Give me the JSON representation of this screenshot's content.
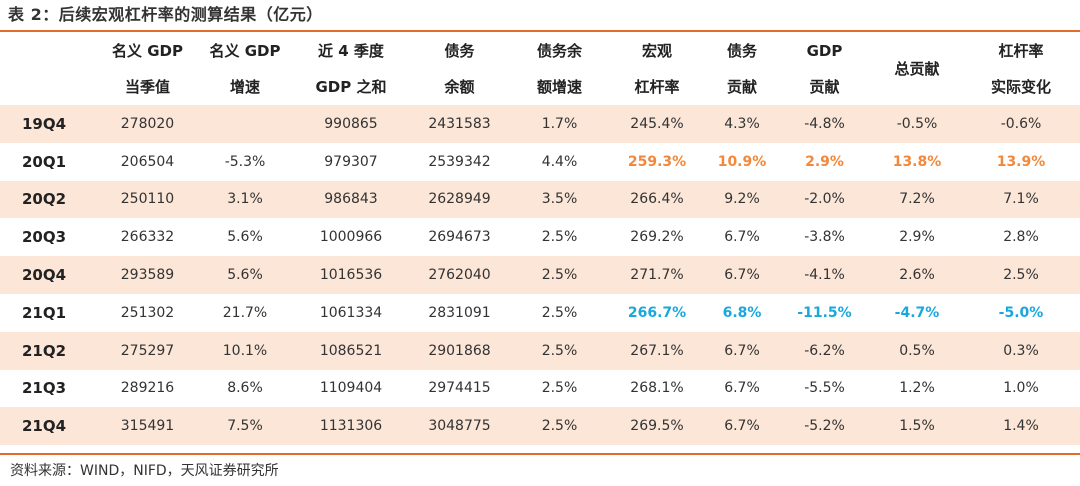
{
  "title": "表 2：后续宏观杠杆率的测算结果（亿元）",
  "headers": [
    {
      "l1": "",
      "l2": ""
    },
    {
      "l1": "名义 GDP",
      "l2": "当季值"
    },
    {
      "l1": "名义 GDP",
      "l2": "增速"
    },
    {
      "l1": "近 4 季度",
      "l2": "GDP 之和"
    },
    {
      "l1": "债务",
      "l2": "余额"
    },
    {
      "l1": "债务余",
      "l2": "额增速"
    },
    {
      "l1": "宏观",
      "l2": "杠杆率"
    },
    {
      "l1": "债务",
      "l2": "贡献"
    },
    {
      "l1": "GDP",
      "l2": "贡献"
    },
    {
      "l1": "总贡献",
      "l2": ""
    },
    {
      "l1": "杠杆率",
      "l2": "实际变化"
    }
  ],
  "rows": [
    [
      "19Q4",
      "278020",
      "",
      "990865",
      "2431583",
      "1.7%",
      "245.4%",
      "4.3%",
      "-4.8%",
      "-0.5%",
      "-0.6%"
    ],
    [
      "20Q1",
      "206504",
      "-5.3%",
      "979307",
      "2539342",
      "4.4%",
      "259.3%",
      "10.9%",
      "2.9%",
      "13.8%",
      "13.9%"
    ],
    [
      "20Q2",
      "250110",
      "3.1%",
      "986843",
      "2628949",
      "3.5%",
      "266.4%",
      "9.2%",
      "-2.0%",
      "7.2%",
      "7.1%"
    ],
    [
      "20Q3",
      "266332",
      "5.6%",
      "1000966",
      "2694673",
      "2.5%",
      "269.2%",
      "6.7%",
      "-3.8%",
      "2.9%",
      "2.8%"
    ],
    [
      "20Q4",
      "293589",
      "5.6%",
      "1016536",
      "2762040",
      "2.5%",
      "271.7%",
      "6.7%",
      "-4.1%",
      "2.6%",
      "2.5%"
    ],
    [
      "21Q1",
      "251302",
      "21.7%",
      "1061334",
      "2831091",
      "2.5%",
      "266.7%",
      "6.8%",
      "-11.5%",
      "-4.7%",
      "-5.0%"
    ],
    [
      "21Q2",
      "275297",
      "10.1%",
      "1086521",
      "2901868",
      "2.5%",
      "267.1%",
      "6.7%",
      "-6.2%",
      "0.5%",
      "0.3%"
    ],
    [
      "21Q3",
      "289216",
      "8.6%",
      "1109404",
      "2974415",
      "2.5%",
      "268.1%",
      "6.7%",
      "-5.5%",
      "1.2%",
      "1.0%"
    ],
    [
      "21Q4",
      "315491",
      "7.5%",
      "1131306",
      "3048775",
      "2.5%",
      "269.5%",
      "6.7%",
      "-5.2%",
      "1.5%",
      "1.4%"
    ]
  ],
  "highlight_colors": {
    "orange": "#f2883b",
    "blue": "#19a7de",
    "stripe": "#fbe6d8",
    "rule": "#e36c2c"
  },
  "source": "资料来源：WIND，NIFD，天风证券研究所"
}
